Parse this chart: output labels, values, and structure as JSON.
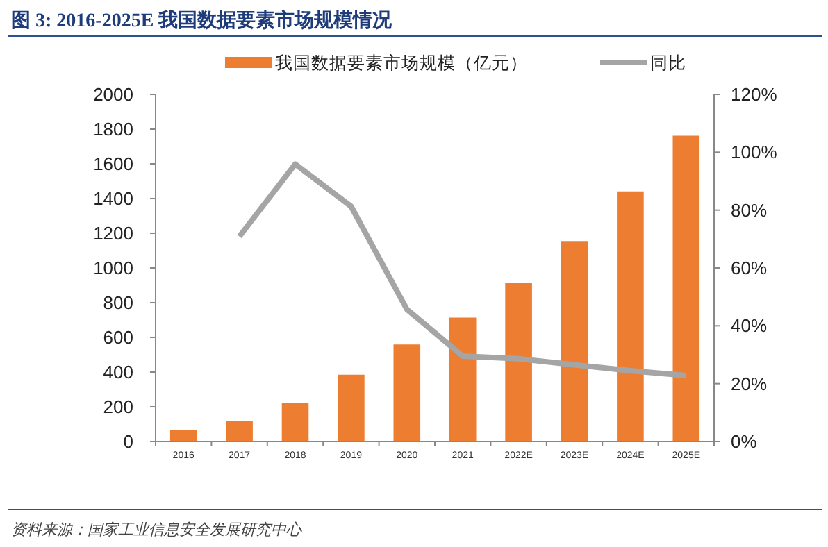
{
  "chart_data": {
    "type": "bar",
    "title": "图 3: 2016-2025E 我国数据要素市场规模情况",
    "categories": [
      "2016",
      "2017",
      "2018",
      "2019",
      "2020",
      "2021",
      "2022E",
      "2023E",
      "2024E",
      "2025E"
    ],
    "series": [
      {
        "name": "我国数据要素市场规模（亿元）",
        "color": "#ed7d31",
        "values": [
          67,
          118,
          222,
          385,
          559,
          714,
          914,
          1155,
          1441,
          1762
        ]
      },
      {
        "name": "同比",
        "type": "line",
        "axis": "y2",
        "color": "#a5a5a5",
        "values": [
          null,
          70.9,
          95.9,
          81.3,
          45.7,
          29.5,
          28.6,
          26.5,
          24.5,
          22.8
        ]
      }
    ],
    "ylim": [
      0,
      2000
    ],
    "yticks": [
      0,
      200,
      400,
      600,
      800,
      1000,
      1200,
      1400,
      1600,
      1800,
      2000
    ],
    "y2lim": [
      0,
      120
    ],
    "y2ticks": [
      {
        "value": 0,
        "label": "0%"
      },
      {
        "value": 20,
        "label": "20%"
      },
      {
        "value": 40,
        "label": "40%"
      },
      {
        "value": 60,
        "label": "60%"
      },
      {
        "value": 80,
        "label": "80%"
      },
      {
        "value": 100,
        "label": "100%"
      },
      {
        "value": 120,
        "label": "120%"
      }
    ],
    "legend": "top",
    "grid": false,
    "marker": "none",
    "line_style": "solid",
    "annotations": [
      "资料来源：国家工业信息安全发展研究中心"
    ]
  }
}
